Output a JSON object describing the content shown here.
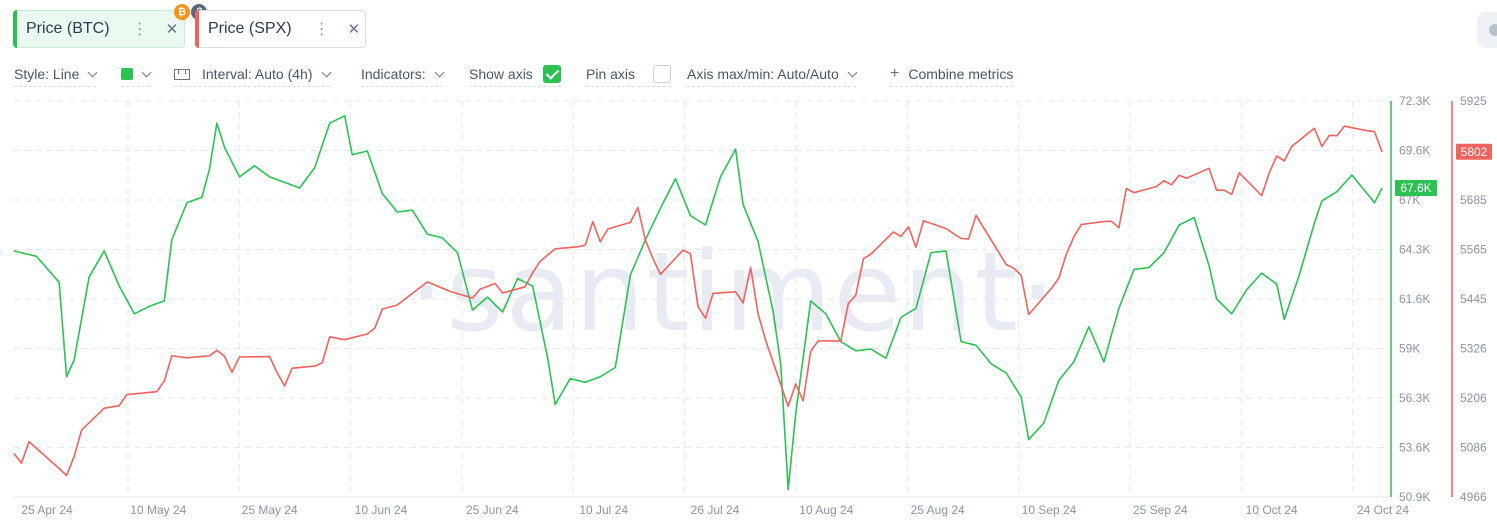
{
  "metrics": [
    {
      "label": "Price (BTC)",
      "color": "#2bc155"
    },
    {
      "label": "Price (SPX)",
      "color": "#f0625f"
    }
  ],
  "chip_icons": {
    "more": "⋮",
    "close": "✕",
    "btc_badge": "₿"
  },
  "toolbar": {
    "style": "Style: Line",
    "interval": "Interval: Auto (4h)",
    "indicators": "Indicators:",
    "show_axis": "Show axis",
    "show_axis_checked": true,
    "pin_axis": "Pin axis",
    "pin_axis_checked": false,
    "axis_range": "Axis max/min: Auto/Auto",
    "combine": "Combine metrics"
  },
  "watermark": "·santiment·",
  "chart_data": {
    "type": "line",
    "x_tick_labels": [
      "25 Apr 24",
      "10 May 24",
      "25 May 24",
      "10 Jun 24",
      "25 Jun 24",
      "10 Jul 24",
      "26 Jul 24",
      "10 Aug 24",
      "25 Aug 24",
      "10 Sep 24",
      "25 Sep 24",
      "10 Oct 24",
      "24 Oct 24"
    ],
    "xlim": [
      "2024-04-24",
      "2024-10-23"
    ],
    "series": [
      {
        "name": "Price (BTC)",
        "color": "#2bc155",
        "axis": "left",
        "ylim": [
          50900,
          72300
        ],
        "y_tick_labels": [
          "72.3K",
          "69.6K",
          "67K",
          "64.3K",
          "61.6K",
          "59K",
          "56.3K",
          "53.6K",
          "50.9K"
        ],
        "last_value_label": "67.6K",
        "last_value": 67600,
        "points": [
          [
            "2024-04-24",
            64200
          ],
          [
            "2024-04-27",
            63900
          ],
          [
            "2024-04-30",
            62500
          ],
          [
            "2024-05-01",
            57400
          ],
          [
            "2024-05-02",
            58300
          ],
          [
            "2024-05-04",
            62800
          ],
          [
            "2024-05-06",
            64200
          ],
          [
            "2024-05-08",
            62300
          ],
          [
            "2024-05-10",
            60800
          ],
          [
            "2024-05-12",
            61200
          ],
          [
            "2024-05-14",
            61500
          ],
          [
            "2024-05-15",
            64800
          ],
          [
            "2024-05-17",
            66800
          ],
          [
            "2024-05-19",
            67100
          ],
          [
            "2024-05-20",
            68600
          ],
          [
            "2024-05-21",
            71100
          ],
          [
            "2024-05-22",
            69800
          ],
          [
            "2024-05-24",
            68200
          ],
          [
            "2024-05-26",
            68800
          ],
          [
            "2024-05-28",
            68200
          ],
          [
            "2024-05-30",
            67900
          ],
          [
            "2024-06-01",
            67600
          ],
          [
            "2024-06-03",
            68700
          ],
          [
            "2024-06-05",
            71100
          ],
          [
            "2024-06-07",
            71500
          ],
          [
            "2024-06-08",
            69400
          ],
          [
            "2024-06-10",
            69600
          ],
          [
            "2024-06-12",
            67300
          ],
          [
            "2024-06-14",
            66300
          ],
          [
            "2024-06-16",
            66400
          ],
          [
            "2024-06-18",
            65100
          ],
          [
            "2024-06-20",
            64900
          ],
          [
            "2024-06-22",
            64100
          ],
          [
            "2024-06-24",
            61000
          ],
          [
            "2024-06-26",
            61700
          ],
          [
            "2024-06-28",
            60900
          ],
          [
            "2024-06-30",
            62700
          ],
          [
            "2024-07-02",
            62300
          ],
          [
            "2024-07-04",
            58400
          ],
          [
            "2024-07-05",
            55900
          ],
          [
            "2024-07-07",
            57300
          ],
          [
            "2024-07-09",
            57100
          ],
          [
            "2024-07-11",
            57400
          ],
          [
            "2024-07-13",
            57900
          ],
          [
            "2024-07-15",
            62900
          ],
          [
            "2024-07-17",
            64800
          ],
          [
            "2024-07-19",
            66500
          ],
          [
            "2024-07-21",
            68100
          ],
          [
            "2024-07-23",
            66100
          ],
          [
            "2024-07-25",
            65600
          ],
          [
            "2024-07-27",
            68200
          ],
          [
            "2024-07-29",
            69700
          ],
          [
            "2024-07-30",
            66700
          ],
          [
            "2024-08-01",
            64700
          ],
          [
            "2024-08-03",
            60900
          ],
          [
            "2024-08-04",
            58100
          ],
          [
            "2024-08-05",
            51300
          ],
          [
            "2024-08-06",
            55400
          ],
          [
            "2024-08-08",
            61500
          ],
          [
            "2024-08-10",
            60800
          ],
          [
            "2024-08-12",
            59300
          ],
          [
            "2024-08-14",
            58800
          ],
          [
            "2024-08-16",
            58900
          ],
          [
            "2024-08-18",
            58400
          ],
          [
            "2024-08-20",
            60600
          ],
          [
            "2024-08-22",
            61100
          ],
          [
            "2024-08-24",
            64100
          ],
          [
            "2024-08-26",
            64200
          ],
          [
            "2024-08-28",
            59300
          ],
          [
            "2024-08-30",
            59100
          ],
          [
            "2024-09-01",
            58100
          ],
          [
            "2024-09-03",
            57600
          ],
          [
            "2024-09-05",
            56300
          ],
          [
            "2024-09-06",
            54000
          ],
          [
            "2024-09-08",
            54900
          ],
          [
            "2024-09-10",
            57200
          ],
          [
            "2024-09-12",
            58200
          ],
          [
            "2024-09-14",
            60100
          ],
          [
            "2024-09-16",
            58200
          ],
          [
            "2024-09-18",
            61100
          ],
          [
            "2024-09-20",
            63200
          ],
          [
            "2024-09-22",
            63300
          ],
          [
            "2024-09-24",
            64100
          ],
          [
            "2024-09-26",
            65600
          ],
          [
            "2024-09-28",
            66000
          ],
          [
            "2024-09-30",
            63400
          ],
          [
            "2024-10-01",
            61600
          ],
          [
            "2024-10-03",
            60800
          ],
          [
            "2024-10-05",
            62100
          ],
          [
            "2024-10-07",
            63000
          ],
          [
            "2024-10-09",
            62400
          ],
          [
            "2024-10-10",
            60500
          ],
          [
            "2024-10-12",
            62900
          ],
          [
            "2024-10-14",
            65700
          ],
          [
            "2024-10-15",
            66900
          ],
          [
            "2024-10-17",
            67400
          ],
          [
            "2024-10-19",
            68300
          ],
          [
            "2024-10-21",
            67300
          ],
          [
            "2024-10-22",
            66800
          ],
          [
            "2024-10-23",
            67600
          ]
        ]
      },
      {
        "name": "Price (SPX)",
        "color": "#f0625f",
        "axis": "right",
        "ylim": [
          4966,
          5925
        ],
        "y_tick_labels": [
          "5925",
          "5805",
          "5685",
          "5565",
          "5445",
          "5326",
          "5206",
          "5086",
          "4966"
        ],
        "last_value_label": "5802",
        "last_value": 5802,
        "points": [
          [
            "2024-04-24",
            5071
          ],
          [
            "2024-04-25",
            5048
          ],
          [
            "2024-04-26",
            5100
          ],
          [
            "2024-04-30",
            5035
          ],
          [
            "2024-05-01",
            5018
          ],
          [
            "2024-05-02",
            5064
          ],
          [
            "2024-05-03",
            5128
          ],
          [
            "2024-05-06",
            5181
          ],
          [
            "2024-05-08",
            5187
          ],
          [
            "2024-05-09",
            5214
          ],
          [
            "2024-05-13",
            5221
          ],
          [
            "2024-05-14",
            5247
          ],
          [
            "2024-05-15",
            5308
          ],
          [
            "2024-05-17",
            5303
          ],
          [
            "2024-05-20",
            5308
          ],
          [
            "2024-05-21",
            5321
          ],
          [
            "2024-05-22",
            5307
          ],
          [
            "2024-05-23",
            5268
          ],
          [
            "2024-05-24",
            5305
          ],
          [
            "2024-05-28",
            5306
          ],
          [
            "2024-05-29",
            5267
          ],
          [
            "2024-05-30",
            5235
          ],
          [
            "2024-05-31",
            5278
          ],
          [
            "2024-06-03",
            5283
          ],
          [
            "2024-06-04",
            5291
          ],
          [
            "2024-06-05",
            5354
          ],
          [
            "2024-06-07",
            5347
          ],
          [
            "2024-06-10",
            5361
          ],
          [
            "2024-06-11",
            5375
          ],
          [
            "2024-06-12",
            5421
          ],
          [
            "2024-06-14",
            5431
          ],
          [
            "2024-06-17",
            5473
          ],
          [
            "2024-06-18",
            5487
          ],
          [
            "2024-06-21",
            5464
          ],
          [
            "2024-06-24",
            5448
          ],
          [
            "2024-06-25",
            5469
          ],
          [
            "2024-06-27",
            5483
          ],
          [
            "2024-06-28",
            5460
          ],
          [
            "2024-07-01",
            5475
          ],
          [
            "2024-07-02",
            5509
          ],
          [
            "2024-07-03",
            5537
          ],
          [
            "2024-07-05",
            5567
          ],
          [
            "2024-07-08",
            5572
          ],
          [
            "2024-07-09",
            5576
          ],
          [
            "2024-07-10",
            5633
          ],
          [
            "2024-07-11",
            5584
          ],
          [
            "2024-07-12",
            5615
          ],
          [
            "2024-07-15",
            5631
          ],
          [
            "2024-07-16",
            5667
          ],
          [
            "2024-07-17",
            5588
          ],
          [
            "2024-07-18",
            5544
          ],
          [
            "2024-07-19",
            5505
          ],
          [
            "2024-07-22",
            5564
          ],
          [
            "2024-07-23",
            5555
          ],
          [
            "2024-07-24",
            5427
          ],
          [
            "2024-07-25",
            5399
          ],
          [
            "2024-07-26",
            5459
          ],
          [
            "2024-07-29",
            5463
          ],
          [
            "2024-07-30",
            5436
          ],
          [
            "2024-07-31",
            5522
          ],
          [
            "2024-08-01",
            5410
          ],
          [
            "2024-08-02",
            5346
          ],
          [
            "2024-08-05",
            5186
          ],
          [
            "2024-08-06",
            5240
          ],
          [
            "2024-08-07",
            5199
          ],
          [
            "2024-08-08",
            5319
          ],
          [
            "2024-08-09",
            5344
          ],
          [
            "2024-08-12",
            5344
          ],
          [
            "2024-08-13",
            5434
          ],
          [
            "2024-08-14",
            5455
          ],
          [
            "2024-08-15",
            5543
          ],
          [
            "2024-08-16",
            5554
          ],
          [
            "2024-08-19",
            5608
          ],
          [
            "2024-08-20",
            5597
          ],
          [
            "2024-08-21",
            5620
          ],
          [
            "2024-08-22",
            5571
          ],
          [
            "2024-08-23",
            5635
          ],
          [
            "2024-08-26",
            5616
          ],
          [
            "2024-08-28",
            5592
          ],
          [
            "2024-08-29",
            5591
          ],
          [
            "2024-08-30",
            5648
          ],
          [
            "2024-09-03",
            5529
          ],
          [
            "2024-09-04",
            5520
          ],
          [
            "2024-09-05",
            5503
          ],
          [
            "2024-09-06",
            5408
          ],
          [
            "2024-09-09",
            5471
          ],
          [
            "2024-09-10",
            5496
          ],
          [
            "2024-09-11",
            5554
          ],
          [
            "2024-09-12",
            5596
          ],
          [
            "2024-09-13",
            5626
          ],
          [
            "2024-09-16",
            5633
          ],
          [
            "2024-09-17",
            5634
          ],
          [
            "2024-09-18",
            5618
          ],
          [
            "2024-09-19",
            5713
          ],
          [
            "2024-09-20",
            5703
          ],
          [
            "2024-09-23",
            5718
          ],
          [
            "2024-09-24",
            5732
          ],
          [
            "2024-09-25",
            5722
          ],
          [
            "2024-09-26",
            5745
          ],
          [
            "2024-09-27",
            5738
          ],
          [
            "2024-09-30",
            5762
          ],
          [
            "2024-10-01",
            5709
          ],
          [
            "2024-10-02",
            5709
          ],
          [
            "2024-10-03",
            5699
          ],
          [
            "2024-10-04",
            5751
          ],
          [
            "2024-10-07",
            5696
          ],
          [
            "2024-10-08",
            5751
          ],
          [
            "2024-10-09",
            5792
          ],
          [
            "2024-10-10",
            5780
          ],
          [
            "2024-10-11",
            5815
          ],
          [
            "2024-10-14",
            5859
          ],
          [
            "2024-10-15",
            5815
          ],
          [
            "2024-10-16",
            5842
          ],
          [
            "2024-10-17",
            5841
          ],
          [
            "2024-10-18",
            5864
          ],
          [
            "2024-10-21",
            5853
          ],
          [
            "2024-10-22",
            5851
          ],
          [
            "2024-10-23",
            5802
          ]
        ]
      }
    ],
    "grid": true,
    "grid_style": "dashed"
  }
}
